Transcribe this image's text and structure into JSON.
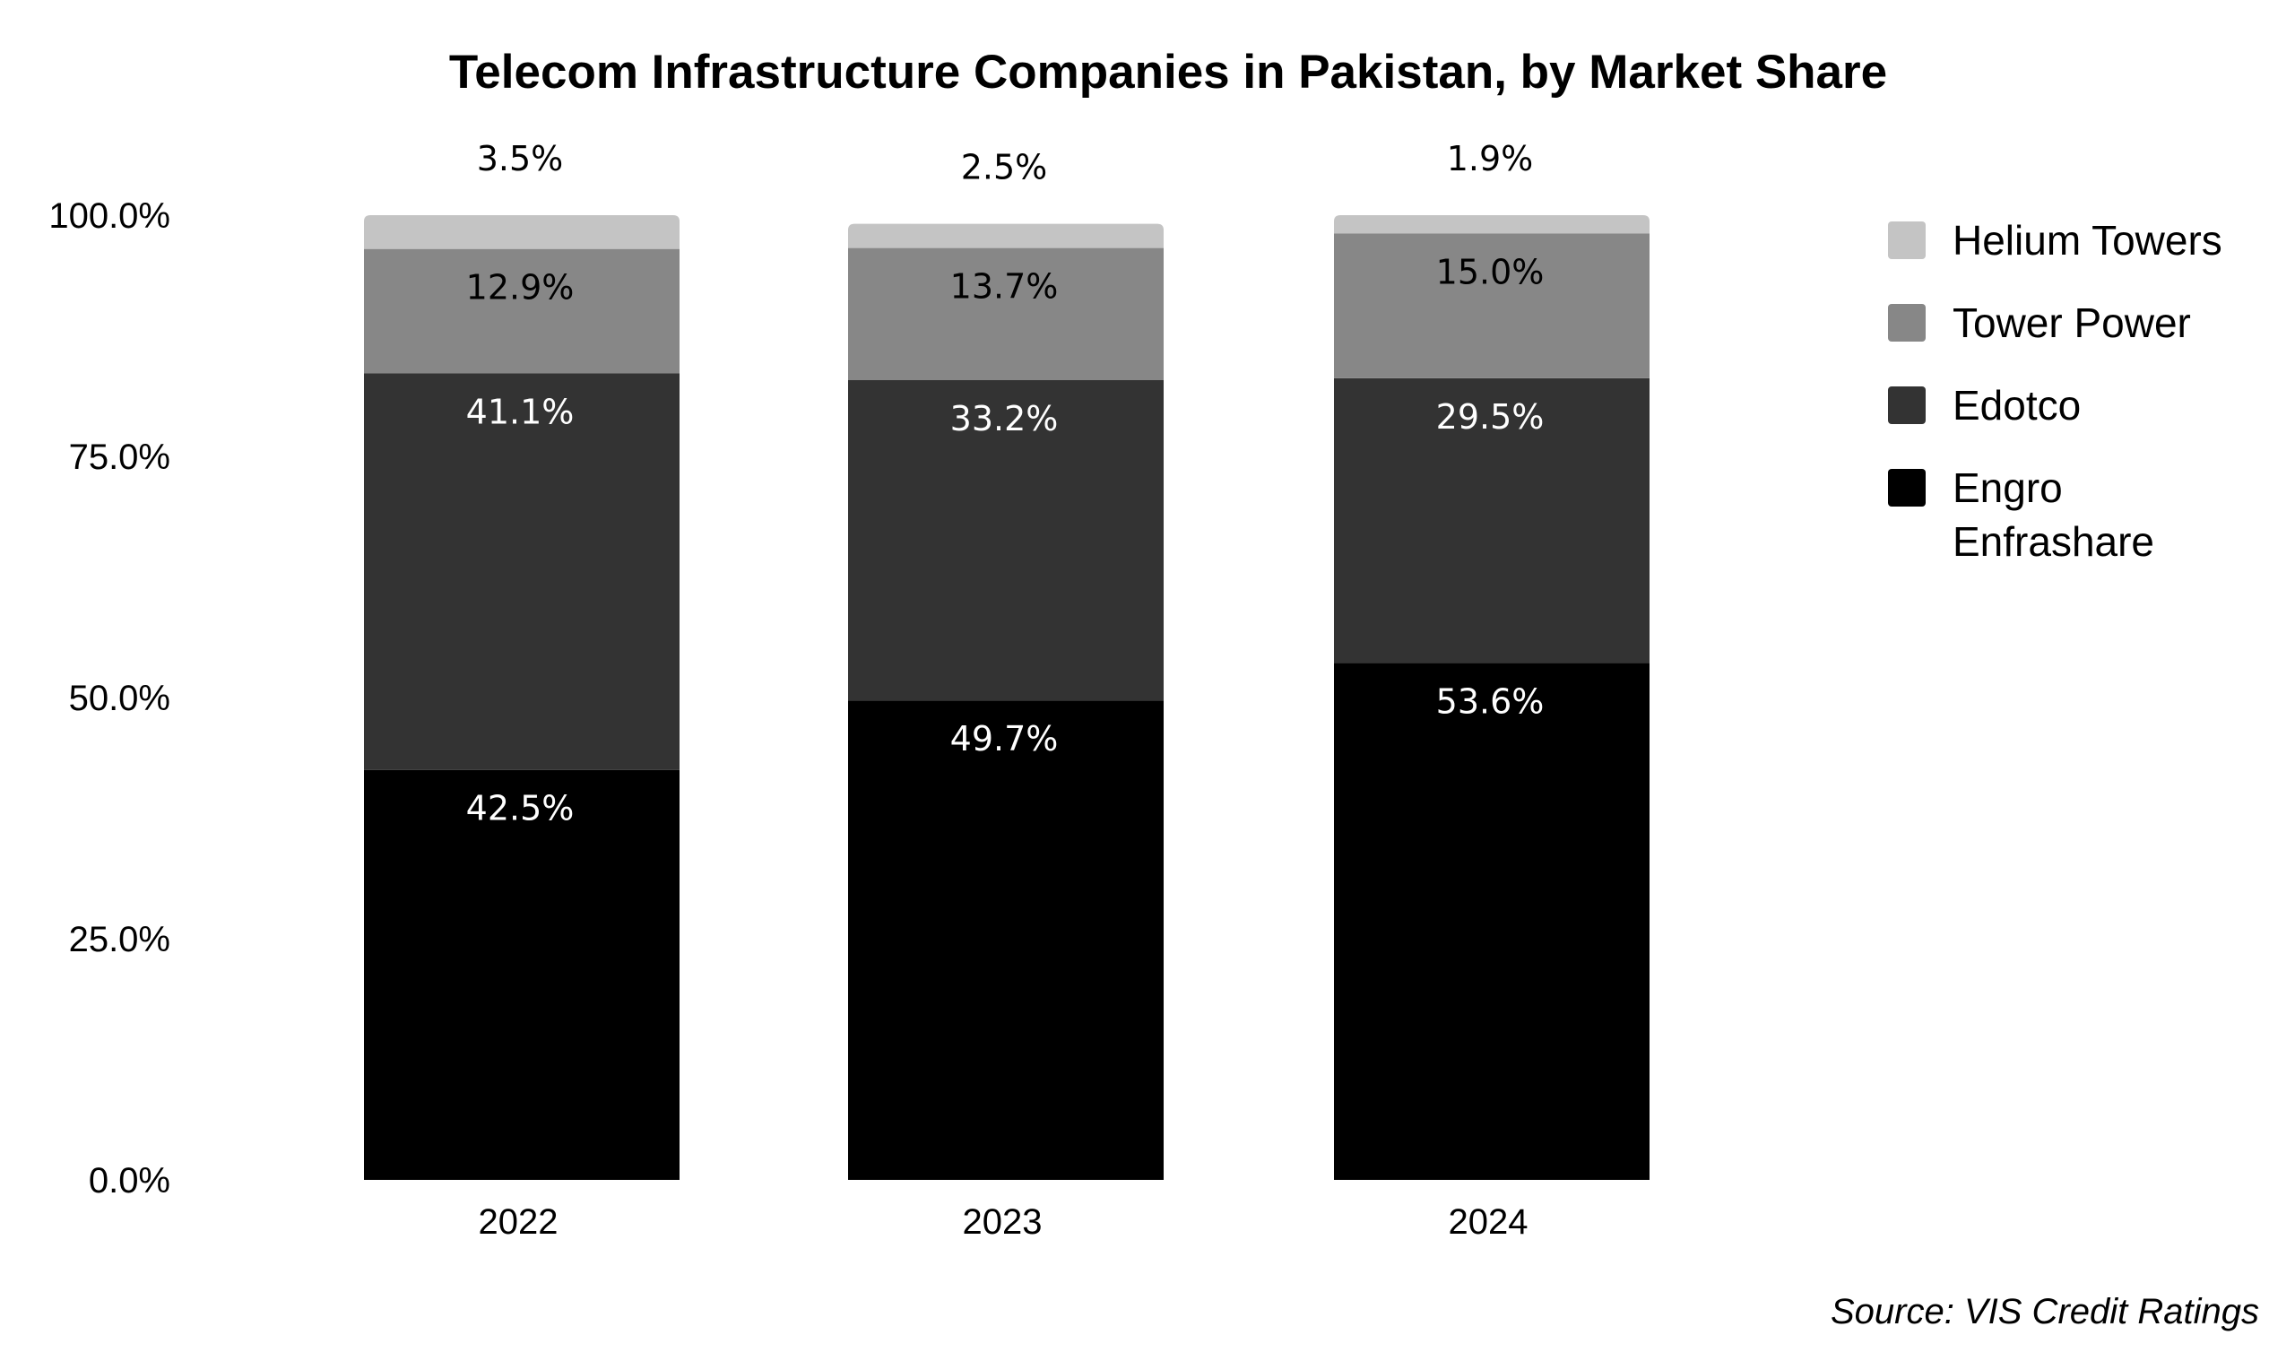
{
  "chart_data": {
    "type": "bar",
    "stacked": true,
    "title": "Telecom Infrastructure Companies in Pakistan, by Market Share",
    "source": "Source: VIS Credit Ratings",
    "categories": [
      "2022",
      "2023",
      "2024"
    ],
    "ylim": [
      0,
      100
    ],
    "yticks": [
      "0.0%",
      "25.0%",
      "50.0%",
      "75.0%",
      "100.0%"
    ],
    "ytick_values": [
      0,
      25,
      50,
      75,
      100
    ],
    "grid": false,
    "legend_position": "right",
    "series": [
      {
        "name": "Engro Enfrashare",
        "values": [
          42.5,
          49.7,
          53.6
        ],
        "labels": [
          "42.5%",
          "49.7%",
          "53.6%"
        ],
        "color": "#000000",
        "label_color": "#ffffff"
      },
      {
        "name": "Edotco",
        "values": [
          41.1,
          33.2,
          29.5
        ],
        "labels": [
          "41.1%",
          "33.2%",
          "29.5%"
        ],
        "color": "#333333",
        "label_color": "#ffffff"
      },
      {
        "name": "Tower Power",
        "values": [
          12.9,
          13.7,
          15.0
        ],
        "labels": [
          "12.9%",
          "13.7%",
          "15.0%"
        ],
        "color": "#878787",
        "label_color": "#000000"
      },
      {
        "name": "Helium Towers",
        "values": [
          3.5,
          2.5,
          1.9
        ],
        "labels": [
          "3.5%",
          "2.5%",
          "1.9%"
        ],
        "color": "#c4c4c4",
        "label_color": "#000000"
      }
    ],
    "legend_order": [
      "Helium Towers",
      "Tower Power",
      "Edotco",
      "Engro Enfrashare"
    ]
  }
}
